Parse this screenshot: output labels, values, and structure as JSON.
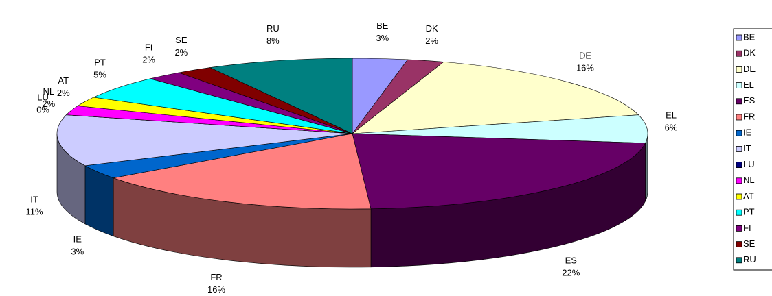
{
  "chart_data": {
    "type": "pie",
    "categories": [
      "BE",
      "DK",
      "DE",
      "EL",
      "ES",
      "FR",
      "IE",
      "IT",
      "LU",
      "NL",
      "AT",
      "PT",
      "FI",
      "SE",
      "RU"
    ],
    "values": [
      3,
      2,
      16,
      6,
      22,
      16,
      3,
      11,
      0,
      2,
      2,
      5,
      2,
      2,
      8
    ],
    "value_labels": [
      "3%",
      "2%",
      "16%",
      "6%",
      "22%",
      "16%",
      "3%",
      "11%",
      "0%",
      "2%",
      "2%",
      "5%",
      "2%",
      "2%",
      "8%"
    ],
    "colors": [
      "#9999ff",
      "#993366",
      "#ffffcc",
      "#ccffff",
      "#660066",
      "#ff8080",
      "#0066cc",
      "#ccccff",
      "#000080",
      "#ff00ff",
      "#ffff00",
      "#00ffff",
      "#800080",
      "#800000",
      "#008080"
    ],
    "legend": "right"
  }
}
